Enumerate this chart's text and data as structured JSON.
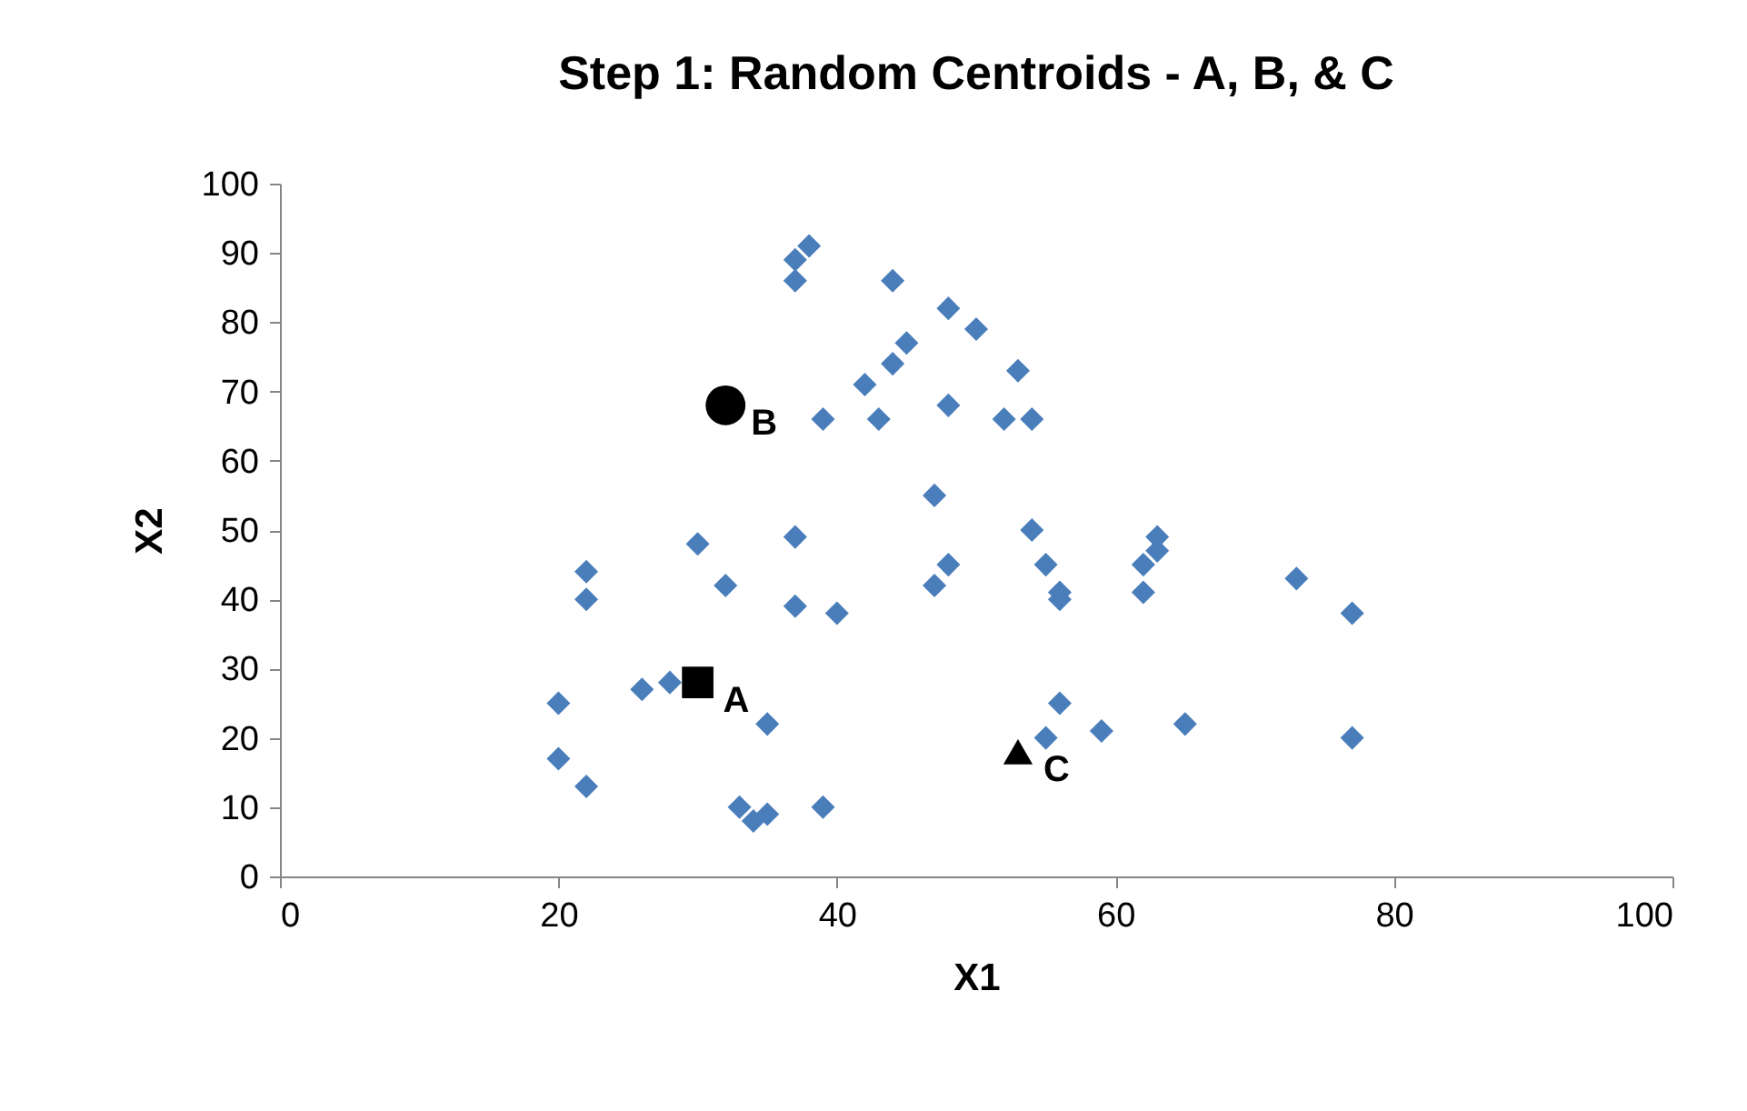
{
  "chart_data": {
    "type": "scatter",
    "title": "Step 1: Random Centroids - A, B, & C",
    "xlabel": "X1",
    "ylabel": "X2",
    "xlim": [
      0,
      100
    ],
    "xticks": [
      0,
      20,
      40,
      60,
      80,
      100
    ],
    "ylim": [
      0,
      100
    ],
    "yticks": [
      0,
      10,
      20,
      30,
      40,
      50,
      60,
      70,
      80,
      90,
      100
    ],
    "grid": false,
    "legend": false,
    "series": [
      {
        "color": "#4a7ebb",
        "marker": "diamond",
        "x": [
          38,
          37,
          37,
          44,
          48,
          50,
          45,
          44,
          53,
          42,
          48,
          39,
          43,
          52,
          54,
          47,
          54,
          63,
          37,
          30,
          63,
          55,
          48,
          62,
          22,
          73,
          32,
          47,
          56,
          62,
          22,
          56,
          37,
          40,
          77,
          26,
          20,
          56,
          35,
          65,
          59,
          55,
          77,
          20,
          22,
          33,
          39,
          35,
          34,
          28
        ],
        "values": [
          91,
          89,
          86,
          86,
          82,
          79,
          77,
          74,
          73,
          71,
          68,
          66,
          66,
          66,
          66,
          55,
          50,
          49,
          49,
          48,
          47,
          45,
          45,
          45,
          44,
          43,
          42,
          42,
          41,
          41,
          40,
          40,
          39,
          38,
          38,
          27,
          25,
          25,
          22,
          22,
          21,
          20,
          20,
          17,
          13,
          10,
          10,
          9,
          8,
          28
        ]
      },
      {
        "name": "A",
        "color": "#000000",
        "marker": "square",
        "x": [
          30
        ],
        "values": [
          28
        ]
      },
      {
        "name": "B",
        "color": "#000000",
        "marker": "circle",
        "x": [
          32
        ],
        "values": [
          68
        ]
      },
      {
        "name": "C",
        "color": "#000000",
        "marker": "triangle",
        "x": [
          53
        ],
        "values": [
          18
        ]
      }
    ]
  }
}
